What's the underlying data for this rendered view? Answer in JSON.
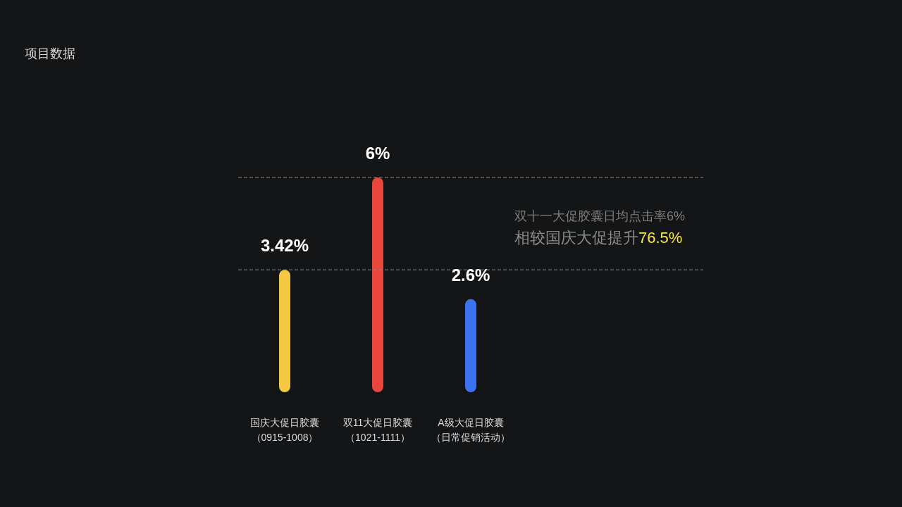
{
  "chart_data": {
    "type": "bar",
    "title": "项目数据",
    "categories": [
      "国庆大促日胶囊（0915-1008）",
      "双11大促日胶囊（1021-1111）",
      "A级大促日胶囊（日常促销活动）"
    ],
    "values": [
      3.42,
      6,
      2.6
    ],
    "colors": [
      "#f5c842",
      "#e8453c",
      "#3d73f0"
    ],
    "value_labels": [
      "3.42%",
      "6%",
      "2.6%"
    ],
    "ref_lines": [
      {
        "axis": "y",
        "value": 6,
        "color": "#8a8a8a",
        "line_style": "dashed"
      },
      {
        "axis": "y",
        "value": 3.42,
        "color": "#8a8a8a",
        "line_style": "dashed"
      }
    ],
    "annotations": [
      "双十一大促胶囊日均点击率6%",
      "相较国庆大促提升76.5%"
    ]
  }
}
